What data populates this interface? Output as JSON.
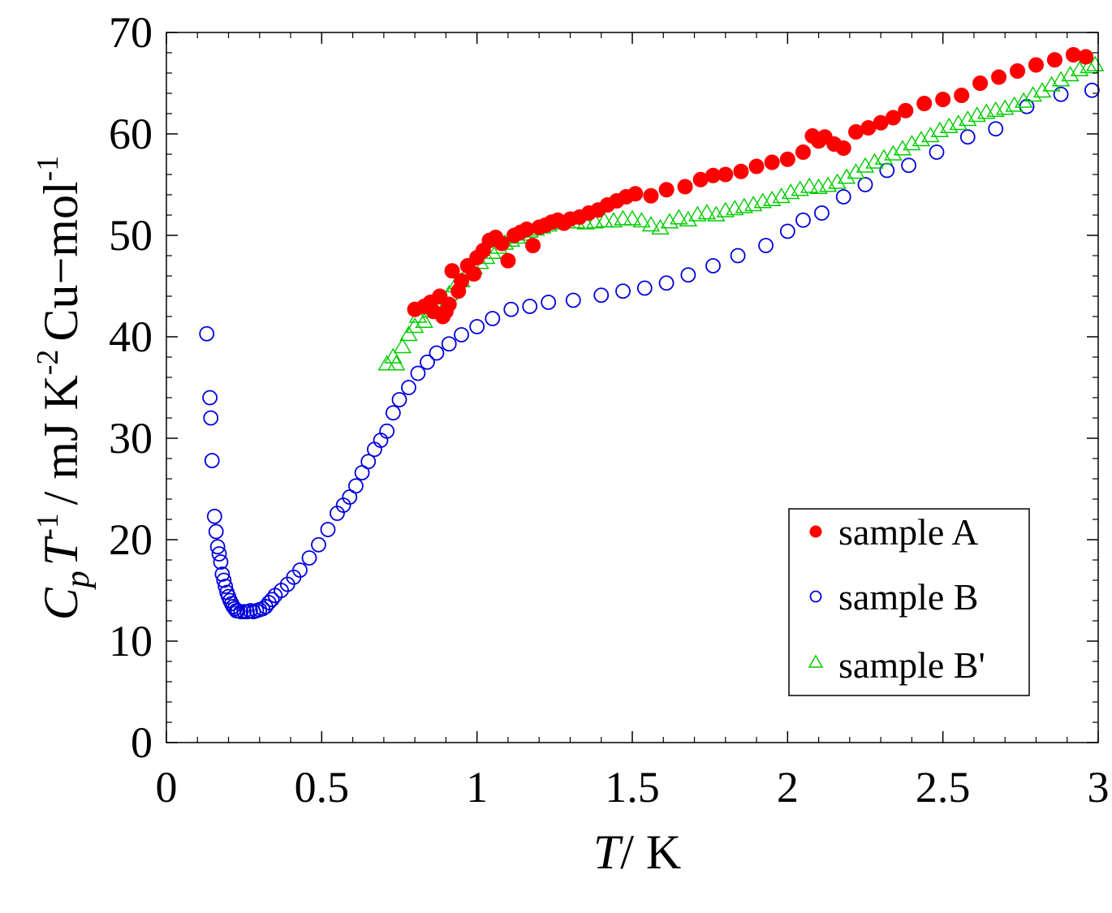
{
  "chart_data": {
    "type": "scatter",
    "x_axis": {
      "label_var": "T",
      "label_unit": "/ K",
      "ticks": [
        "0",
        "0.5",
        "1",
        "1.5",
        "2",
        "2.5",
        "3"
      ],
      "range": [
        0,
        3
      ]
    },
    "y_axis": {
      "label_var_c": "C",
      "label_sub_p": "p",
      "label_var_t": "T",
      "label_sup_1": "-1",
      "label_mid": "/ mJ K",
      "label_sup_2": "-2",
      "label_end": "Cu−mol",
      "label_sup_3": "-1",
      "ticks": [
        "0",
        "10",
        "20",
        "30",
        "40",
        "50",
        "60",
        "70"
      ],
      "range": [
        0,
        70
      ]
    },
    "grid": false,
    "legend": {
      "position": "bottom-right"
    },
    "series": [
      {
        "name": "sample A",
        "marker": "filled-circle",
        "color": "#ff0000",
        "points": [
          [
            0.8,
            42.7
          ],
          [
            0.83,
            43.0
          ],
          [
            0.85,
            43.4
          ],
          [
            0.86,
            42.5
          ],
          [
            0.88,
            44.0
          ],
          [
            0.89,
            42.0
          ],
          [
            0.9,
            42.5
          ],
          [
            0.91,
            43.2
          ],
          [
            0.92,
            46.5
          ],
          [
            0.94,
            44.5
          ],
          [
            0.95,
            45.5
          ],
          [
            0.97,
            47.0
          ],
          [
            0.99,
            46.2
          ],
          [
            1.0,
            47.8
          ],
          [
            1.02,
            48.5
          ],
          [
            1.04,
            49.5
          ],
          [
            1.06,
            49.8
          ],
          [
            1.08,
            49.2
          ],
          [
            1.1,
            47.5
          ],
          [
            1.12,
            50.0
          ],
          [
            1.14,
            50.3
          ],
          [
            1.16,
            50.6
          ],
          [
            1.18,
            49.0
          ],
          [
            1.2,
            50.8
          ],
          [
            1.22,
            51.0
          ],
          [
            1.24,
            51.3
          ],
          [
            1.26,
            51.5
          ],
          [
            1.28,
            51.2
          ],
          [
            1.3,
            51.6
          ],
          [
            1.33,
            51.8
          ],
          [
            1.36,
            52.2
          ],
          [
            1.39,
            52.5
          ],
          [
            1.42,
            53.0
          ],
          [
            1.45,
            53.4
          ],
          [
            1.48,
            53.8
          ],
          [
            1.51,
            54.1
          ],
          [
            1.56,
            53.9
          ],
          [
            1.61,
            54.5
          ],
          [
            1.67,
            54.8
          ],
          [
            1.72,
            55.5
          ],
          [
            1.76,
            55.9
          ],
          [
            1.8,
            56.0
          ],
          [
            1.85,
            56.3
          ],
          [
            1.9,
            56.8
          ],
          [
            1.95,
            57.2
          ],
          [
            2.0,
            57.5
          ],
          [
            2.05,
            58.2
          ],
          [
            2.08,
            59.8
          ],
          [
            2.1,
            59.3
          ],
          [
            2.12,
            59.7
          ],
          [
            2.15,
            59.0
          ],
          [
            2.18,
            58.6
          ],
          [
            2.22,
            60.2
          ],
          [
            2.26,
            60.6
          ],
          [
            2.3,
            61.1
          ],
          [
            2.34,
            61.6
          ],
          [
            2.38,
            62.3
          ],
          [
            2.44,
            63.0
          ],
          [
            2.5,
            63.4
          ],
          [
            2.56,
            63.8
          ],
          [
            2.62,
            65.0
          ],
          [
            2.68,
            65.6
          ],
          [
            2.74,
            66.2
          ],
          [
            2.8,
            66.8
          ],
          [
            2.86,
            67.3
          ],
          [
            2.92,
            67.8
          ],
          [
            2.96,
            67.6
          ]
        ]
      },
      {
        "name": "sample B",
        "marker": "open-circle",
        "color": "#0000dd",
        "points": [
          [
            0.13,
            40.3
          ],
          [
            0.14,
            34.0
          ],
          [
            0.143,
            32.0
          ],
          [
            0.147,
            27.8
          ],
          [
            0.155,
            22.3
          ],
          [
            0.16,
            20.8
          ],
          [
            0.165,
            19.3
          ],
          [
            0.17,
            18.6
          ],
          [
            0.175,
            17.8
          ],
          [
            0.18,
            16.6
          ],
          [
            0.185,
            16.0
          ],
          [
            0.19,
            15.4
          ],
          [
            0.195,
            14.8
          ],
          [
            0.2,
            14.4
          ],
          [
            0.205,
            14.0
          ],
          [
            0.21,
            13.7
          ],
          [
            0.215,
            13.4
          ],
          [
            0.22,
            13.2
          ],
          [
            0.225,
            13.0
          ],
          [
            0.23,
            13.0
          ],
          [
            0.24,
            12.9
          ],
          [
            0.25,
            12.9
          ],
          [
            0.26,
            12.9
          ],
          [
            0.27,
            13.0
          ],
          [
            0.28,
            12.9
          ],
          [
            0.29,
            13.0
          ],
          [
            0.3,
            13.1
          ],
          [
            0.31,
            13.2
          ],
          [
            0.32,
            13.4
          ],
          [
            0.33,
            13.8
          ],
          [
            0.34,
            14.1
          ],
          [
            0.35,
            14.5
          ],
          [
            0.37,
            15.0
          ],
          [
            0.39,
            15.6
          ],
          [
            0.41,
            16.3
          ],
          [
            0.43,
            17.0
          ],
          [
            0.46,
            18.2
          ],
          [
            0.49,
            19.5
          ],
          [
            0.52,
            21.0
          ],
          [
            0.55,
            22.6
          ],
          [
            0.57,
            23.4
          ],
          [
            0.59,
            24.2
          ],
          [
            0.61,
            25.3
          ],
          [
            0.63,
            26.6
          ],
          [
            0.65,
            27.7
          ],
          [
            0.67,
            28.9
          ],
          [
            0.69,
            29.8
          ],
          [
            0.71,
            30.7
          ],
          [
            0.73,
            32.5
          ],
          [
            0.75,
            33.8
          ],
          [
            0.78,
            35.0
          ],
          [
            0.81,
            36.4
          ],
          [
            0.84,
            37.5
          ],
          [
            0.87,
            38.4
          ],
          [
            0.91,
            39.3
          ],
          [
            0.95,
            40.2
          ],
          [
            1.0,
            41.0
          ],
          [
            1.05,
            41.8
          ],
          [
            1.11,
            42.7
          ],
          [
            1.17,
            43.0
          ],
          [
            1.23,
            43.4
          ],
          [
            1.31,
            43.6
          ],
          [
            1.4,
            44.1
          ],
          [
            1.47,
            44.5
          ],
          [
            1.54,
            44.8
          ],
          [
            1.61,
            45.3
          ],
          [
            1.68,
            46.1
          ],
          [
            1.76,
            47.0
          ],
          [
            1.84,
            48.0
          ],
          [
            1.93,
            49.0
          ],
          [
            2.0,
            50.4
          ],
          [
            2.05,
            51.5
          ],
          [
            2.11,
            52.2
          ],
          [
            2.18,
            53.8
          ],
          [
            2.25,
            55.0
          ],
          [
            2.32,
            56.4
          ],
          [
            2.39,
            56.9
          ],
          [
            2.48,
            58.2
          ],
          [
            2.58,
            59.7
          ],
          [
            2.67,
            60.5
          ],
          [
            2.77,
            62.7
          ],
          [
            2.88,
            63.9
          ],
          [
            2.98,
            64.3
          ]
        ]
      },
      {
        "name": "sample B'",
        "marker": "open-triangle",
        "color": "#00cc00",
        "points": [
          [
            0.71,
            37.3
          ],
          [
            0.73,
            38.0
          ],
          [
            0.74,
            37.3
          ],
          [
            0.76,
            39.0
          ],
          [
            0.78,
            40.2
          ],
          [
            0.8,
            41.0
          ],
          [
            0.81,
            42.0
          ],
          [
            0.83,
            41.5
          ],
          [
            0.85,
            42.5
          ],
          [
            0.87,
            43.0
          ],
          [
            0.89,
            43.8
          ],
          [
            0.91,
            44.2
          ],
          [
            0.93,
            45.0
          ],
          [
            0.95,
            45.5
          ],
          [
            0.97,
            46.3
          ],
          [
            0.99,
            46.8
          ],
          [
            1.01,
            47.3
          ],
          [
            1.03,
            47.8
          ],
          [
            1.05,
            48.3
          ],
          [
            1.07,
            48.8
          ],
          [
            1.09,
            49.2
          ],
          [
            1.11,
            49.5
          ],
          [
            1.13,
            49.8
          ],
          [
            1.15,
            50.1
          ],
          [
            1.17,
            50.4
          ],
          [
            1.19,
            50.6
          ],
          [
            1.21,
            50.8
          ],
          [
            1.23,
            51.0
          ],
          [
            1.26,
            51.2
          ],
          [
            1.29,
            51.3
          ],
          [
            1.32,
            51.3
          ],
          [
            1.35,
            51.2
          ],
          [
            1.38,
            51.3
          ],
          [
            1.41,
            51.4
          ],
          [
            1.44,
            51.4
          ],
          [
            1.47,
            51.6
          ],
          [
            1.5,
            51.6
          ],
          [
            1.53,
            51.4
          ],
          [
            1.56,
            51.0
          ],
          [
            1.59,
            50.7
          ],
          [
            1.62,
            51.3
          ],
          [
            1.65,
            51.7
          ],
          [
            1.68,
            51.5
          ],
          [
            1.71,
            52.0
          ],
          [
            1.74,
            52.2
          ],
          [
            1.77,
            52.0
          ],
          [
            1.8,
            52.4
          ],
          [
            1.83,
            52.6
          ],
          [
            1.86,
            52.8
          ],
          [
            1.89,
            53.0
          ],
          [
            1.92,
            53.3
          ],
          [
            1.95,
            53.5
          ],
          [
            1.98,
            53.8
          ],
          [
            2.01,
            54.2
          ],
          [
            2.04,
            54.5
          ],
          [
            2.07,
            54.8
          ],
          [
            2.1,
            54.7
          ],
          [
            2.13,
            54.9
          ],
          [
            2.16,
            55.2
          ],
          [
            2.19,
            55.7
          ],
          [
            2.22,
            56.2
          ],
          [
            2.25,
            56.8
          ],
          [
            2.28,
            57.2
          ],
          [
            2.31,
            57.6
          ],
          [
            2.34,
            58.0
          ],
          [
            2.37,
            58.5
          ],
          [
            2.4,
            59.0
          ],
          [
            2.43,
            59.4
          ],
          [
            2.46,
            59.8
          ],
          [
            2.49,
            60.3
          ],
          [
            2.52,
            60.7
          ],
          [
            2.55,
            61.0
          ],
          [
            2.58,
            61.4
          ],
          [
            2.61,
            61.8
          ],
          [
            2.64,
            62.1
          ],
          [
            2.67,
            62.3
          ],
          [
            2.7,
            62.5
          ],
          [
            2.73,
            62.8
          ],
          [
            2.76,
            63.2
          ],
          [
            2.79,
            63.8
          ],
          [
            2.82,
            64.2
          ],
          [
            2.85,
            64.8
          ],
          [
            2.88,
            65.3
          ],
          [
            2.91,
            65.8
          ],
          [
            2.94,
            66.3
          ],
          [
            2.97,
            66.6
          ],
          [
            2.99,
            66.8
          ]
        ]
      }
    ]
  }
}
